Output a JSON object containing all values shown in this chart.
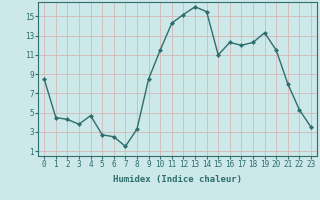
{
  "x": [
    0,
    1,
    2,
    3,
    4,
    5,
    6,
    7,
    8,
    9,
    10,
    11,
    12,
    13,
    14,
    15,
    16,
    17,
    18,
    19,
    20,
    21,
    22,
    23
  ],
  "y": [
    8.5,
    4.5,
    4.3,
    3.8,
    4.7,
    2.7,
    2.5,
    1.5,
    3.3,
    8.5,
    11.5,
    14.3,
    15.2,
    16.0,
    15.5,
    11.0,
    12.3,
    12.0,
    12.3,
    13.3,
    11.5,
    8.0,
    5.3,
    3.5
  ],
  "line_color": "#2e6e6e",
  "marker": "D",
  "marker_size": 2,
  "bg_color": "#cce8e8",
  "grid_color": "#d4b8b8",
  "xlabel": "Humidex (Indice chaleur)",
  "yticks": [
    1,
    3,
    5,
    7,
    9,
    11,
    13,
    15
  ],
  "xlim": [
    -0.5,
    23.5
  ],
  "ylim": [
    0.5,
    16.5
  ],
  "tick_color": "#2e6e6e",
  "label_color": "#2e6e6e",
  "linewidth": 1.0,
  "tick_fontsize": 5.5,
  "xlabel_fontsize": 6.5
}
